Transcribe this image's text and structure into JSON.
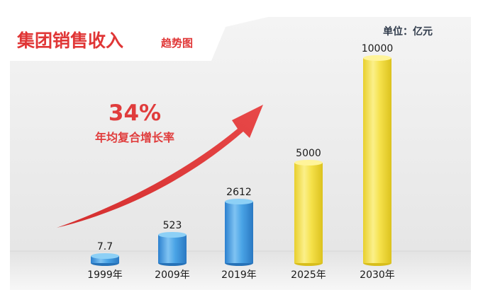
{
  "title": "集团销售收入",
  "subtitle": "趋势图",
  "unit": "单位：亿元",
  "cagr": {
    "value": "34%",
    "label": "年均复合增长率"
  },
  "colors": {
    "accent": "#e03636",
    "blue": "#3a95dc",
    "yellow": "#f2de40"
  },
  "chart_data": {
    "type": "bar",
    "title": "集团销售收入",
    "subtitle": "趋势图",
    "unit": "单位：亿元",
    "categories": [
      "1999年",
      "2009年",
      "2019年",
      "2025年",
      "2030年"
    ],
    "values": [
      7.7,
      523,
      2612,
      5000,
      10000
    ],
    "value_labels": [
      "7.7",
      "523",
      "2612",
      "5000",
      "10000"
    ],
    "bar_colors": [
      "blue",
      "blue",
      "blue",
      "yellow",
      "yellow"
    ],
    "grid": false,
    "legend": "none",
    "annotation": "34% 年均复合增长率"
  }
}
